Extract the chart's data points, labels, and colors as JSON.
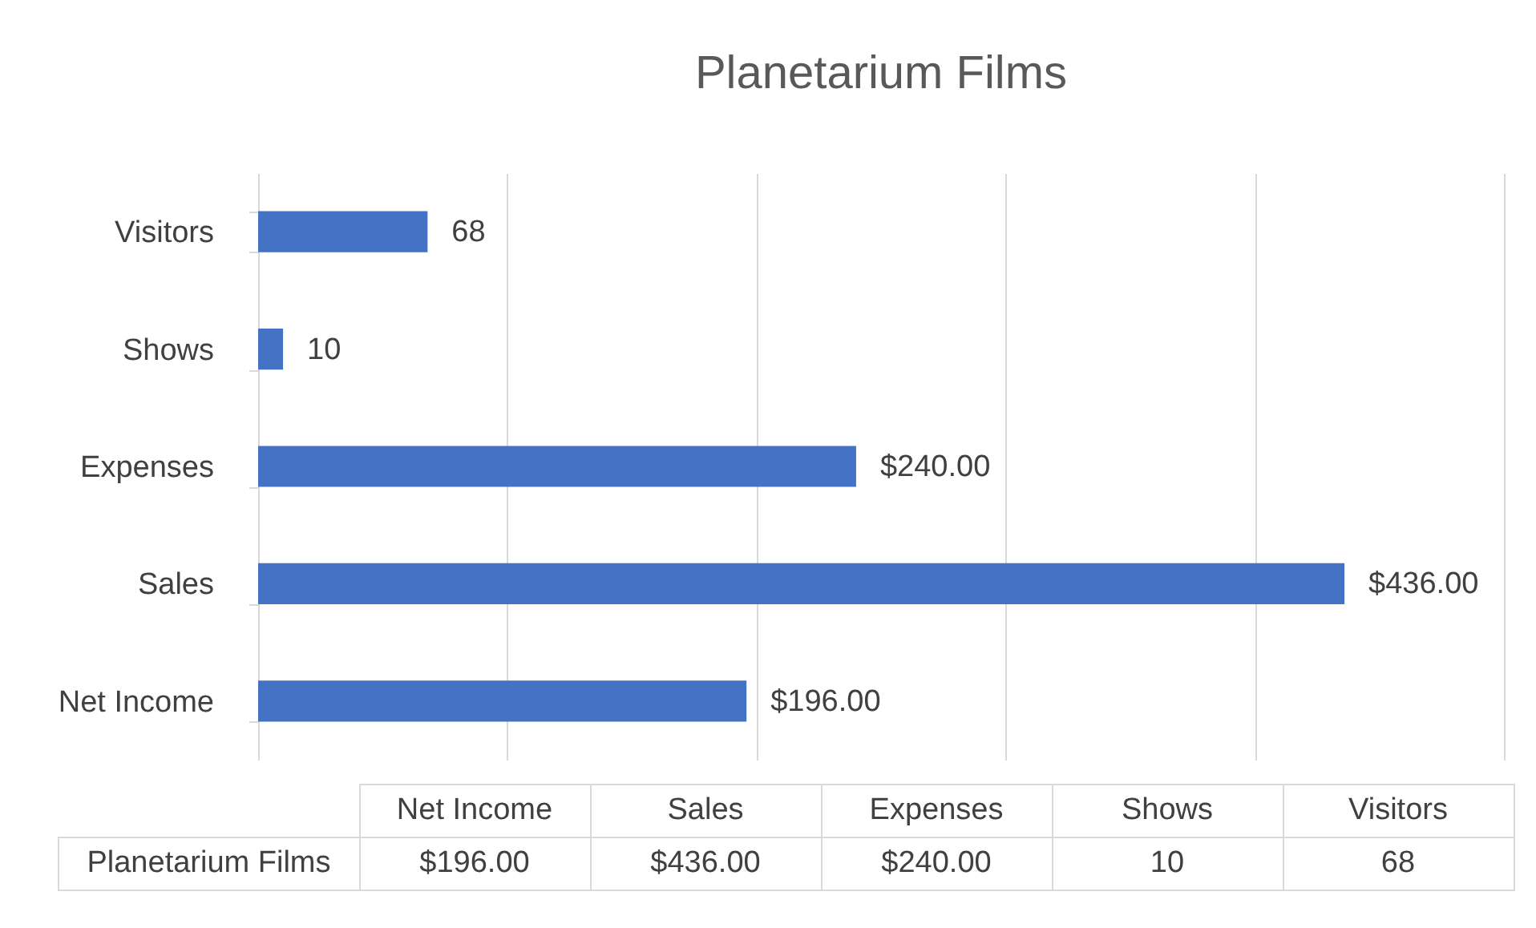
{
  "chart_data": {
    "type": "bar",
    "orientation": "horizontal",
    "title": "Planetarium Films",
    "categories": [
      "Visitors",
      "Shows",
      "Expenses",
      "Sales",
      "Net Income"
    ],
    "series": [
      {
        "name": "Planetarium Films",
        "color": "#4472c4",
        "values": [
          68,
          10,
          240,
          436,
          196
        ],
        "value_labels": [
          "68",
          "10",
          "$240.00",
          "$436.00",
          "$196.00"
        ]
      }
    ],
    "xlim": [
      0,
      500
    ],
    "xticks": [
      0,
      100,
      200,
      300,
      400,
      500
    ],
    "grid": "x",
    "tick_labels": "y"
  }
}
